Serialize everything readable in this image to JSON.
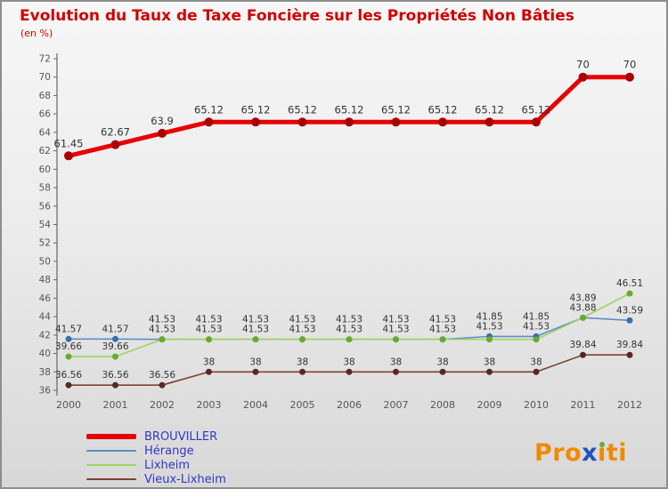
{
  "title": "Evolution du Taux de Taxe Foncière sur les Propriétés Non Bâties",
  "subtitle": "(en %)",
  "colors": {
    "title_red": "#d00000",
    "axis_line": "#666666",
    "axis_text": "#555555",
    "label_text": "#333333",
    "legend_text": "#3038c0",
    "frame_border": "#8e8e8e"
  },
  "chart_data": {
    "type": "line",
    "x": [
      "2000",
      "2001",
      "2002",
      "2003",
      "2004",
      "2005",
      "2006",
      "2007",
      "2008",
      "2009",
      "2010",
      "2011",
      "2012"
    ],
    "ylim": [
      36,
      72
    ],
    "ytick_step": 2,
    "grid": false,
    "legend_position": "bottom-left",
    "series": [
      {
        "name": "BROUVILLER",
        "color": "#e60000",
        "marker_color": "#a80000",
        "line_width": 5,
        "values": [
          61.45,
          62.67,
          63.9,
          65.12,
          65.12,
          65.12,
          65.12,
          65.12,
          65.12,
          65.12,
          65.12,
          70,
          70
        ],
        "labels": [
          "61.45",
          "62.67",
          "63.9",
          "65.12",
          "65.12",
          "65.12",
          "65.12",
          "65.12",
          "65.12",
          "65.12",
          "65.12",
          "70",
          "70"
        ]
      },
      {
        "name": "Hérange",
        "color": "#5b8fc9",
        "marker_color": "#3a6ea8",
        "line_width": 1.6,
        "values": [
          41.57,
          41.57,
          41.53,
          41.53,
          41.53,
          41.53,
          41.53,
          41.53,
          41.53,
          41.85,
          41.85,
          43.88,
          43.59
        ],
        "labels": [
          "41.57",
          "41.57",
          "41.53",
          "41.53",
          "41.53",
          "41.53",
          "41.53",
          "41.53",
          "41.53",
          "41.85",
          "41.85",
          "43.88",
          "43.59"
        ]
      },
      {
        "name": "Lixheim",
        "color": "#9ed45e",
        "marker_color": "#69a930",
        "line_width": 1.6,
        "values": [
          39.66,
          39.66,
          41.53,
          41.53,
          41.53,
          41.53,
          41.53,
          41.53,
          41.53,
          41.53,
          41.53,
          43.89,
          46.51
        ],
        "labels": [
          "39.66",
          "39.66",
          "41.53",
          "41.53",
          "41.53",
          "41.53",
          "41.53",
          "41.53",
          "41.53",
          "41.53",
          "41.53",
          "43.89",
          "46.51"
        ]
      },
      {
        "name": "Vieux-Lixheim",
        "color": "#7d4034",
        "marker_color": "#59291f",
        "line_width": 1.6,
        "values": [
          36.56,
          36.56,
          36.56,
          38,
          38,
          38,
          38,
          38,
          38,
          38,
          38,
          39.84,
          39.84
        ],
        "labels": [
          "36.56",
          "36.56",
          "36.56",
          "38",
          "38",
          "38",
          "38",
          "38",
          "38",
          "38",
          "38",
          "39.84",
          "39.84"
        ]
      }
    ]
  },
  "logo": {
    "text": "Proxiti",
    "letters": [
      {
        "ch": "P",
        "color": "#f08a00"
      },
      {
        "ch": "r",
        "color": "#f08a00"
      },
      {
        "ch": "o",
        "color": "#f08a00"
      },
      {
        "ch": "x",
        "color": "#1f52c0"
      },
      {
        "ch": "ı",
        "color": "#f08a00",
        "dot": "#5cb130"
      },
      {
        "ch": "t",
        "color": "#f08a00"
      },
      {
        "ch": "i",
        "color": "#f08a00"
      }
    ]
  }
}
